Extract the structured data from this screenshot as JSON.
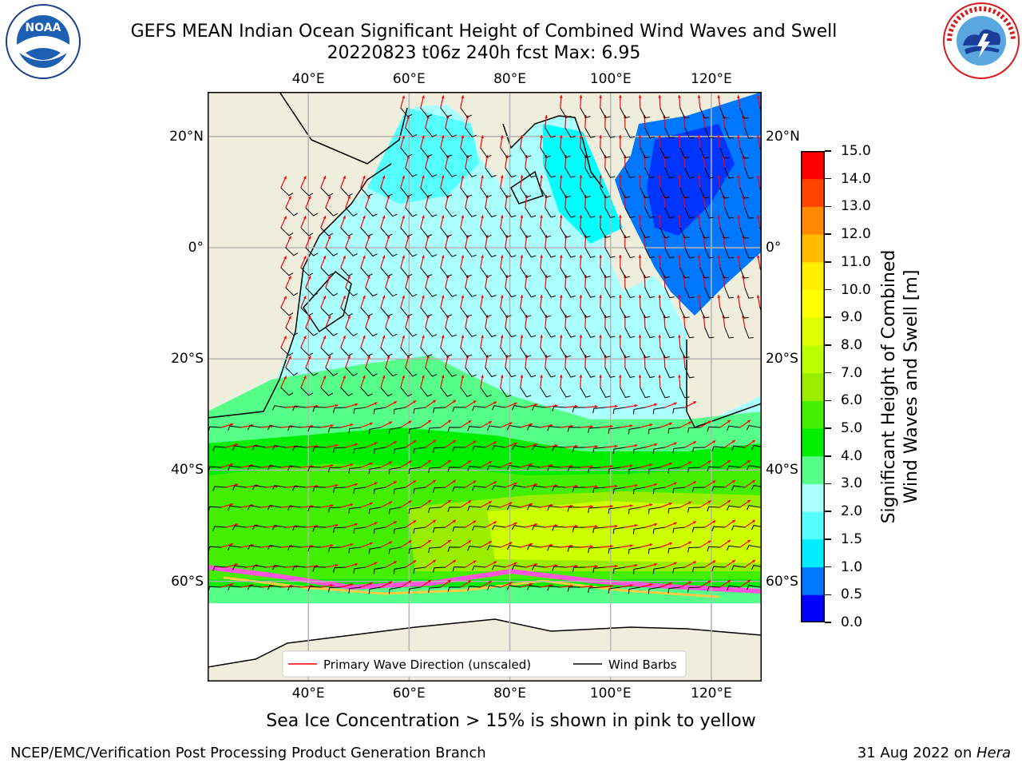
{
  "header": {
    "title_line1": "GEFS MEAN Indian Ocean Significant Height of Combined Wind Waves and Swell",
    "title_line2": "20220823 t06z 240h fcst   Max: 6.95"
  },
  "logos": {
    "left": "NOAA",
    "left_ring": "NATIONAL OCEANIC AND ATMOSPHERIC ADMINISTRATION · U.S. DEPARTMENT OF COMMERCE",
    "right_ring": "NATIONAL WEATHER SERVICE"
  },
  "map": {
    "lon_labels": [
      "40°E",
      "60°E",
      "80°E",
      "100°E",
      "120°E"
    ],
    "lat_labels": [
      "20°N",
      "0°",
      "20°S",
      "40°S",
      "60°S"
    ],
    "lon_ticks": [
      40,
      60,
      80,
      100,
      120
    ],
    "lat_ticks": [
      20,
      0,
      -20,
      -40,
      -60
    ],
    "extent": {
      "lon_min": 20,
      "lon_max": 130,
      "lat_min": -78,
      "lat_max": 28
    },
    "legend": {
      "wave_label": "Primary Wave Direction (unscaled)",
      "barb_label": "Wind Barbs",
      "wave_color": "#ff0000",
      "barb_color": "#000000"
    },
    "colors": {
      "land": "#efeedd",
      "ocean_default": "#aaffff",
      "grid": "#b5b5b5",
      "ice": "#ff55dd"
    }
  },
  "colorbar": {
    "title_line1": "Significant Height of Combined",
    "title_line2": "Wind Waves and Swell [m]",
    "ticks": [
      "0.0",
      "0.5",
      "1.0",
      "1.5",
      "2.0",
      "3.0",
      "4.0",
      "5.0",
      "6.0",
      "7.0",
      "8.0",
      "9.0",
      "10.0",
      "11.0",
      "12.0",
      "13.0",
      "14.0",
      "15.0"
    ],
    "colors": [
      "#0000ff",
      "#0077ff",
      "#00eeff",
      "#55ffff",
      "#aaffff",
      "#55ff88",
      "#00ee00",
      "#44ee00",
      "#99ee00",
      "#bbff00",
      "#ddff00",
      "#ffff00",
      "#ffee00",
      "#ffbb00",
      "#ff8800",
      "#ff4400",
      "#ff0000"
    ]
  },
  "footer": {
    "note": "Sea Ice Concentration > 15% is shown in pink to yellow",
    "left": "NCEP/EMC/Verification Post Processing Product Generation Branch",
    "right_date": "31 Aug 2022 on ",
    "right_host": "Hera"
  }
}
